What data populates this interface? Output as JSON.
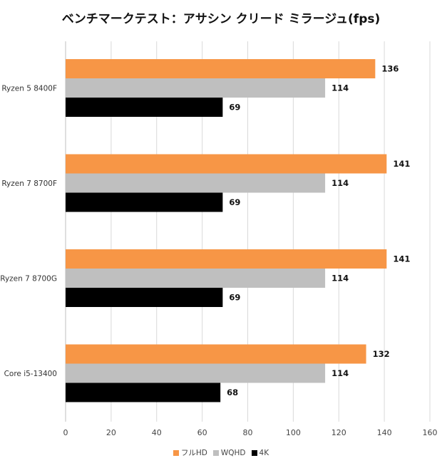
{
  "chart_data": {
    "type": "bar",
    "orientation": "horizontal",
    "title": "ベンチマークテスト：アサシン クリード ミラージュ(fps)",
    "categories": [
      "Ryzen 5 8400F",
      "Ryzen 7 8700F",
      "Ryzen 7 8700G",
      "Core i5-13400"
    ],
    "series": [
      {
        "name": "フルHD",
        "color": "#f79646",
        "values": [
          136,
          141,
          141,
          132
        ]
      },
      {
        "name": "WQHD",
        "color": "#bfbfbf",
        "values": [
          114,
          114,
          114,
          114
        ]
      },
      {
        "name": "4K",
        "color": "#000000",
        "values": [
          69,
          69,
          69,
          68
        ]
      }
    ],
    "xlim": [
      0,
      160
    ],
    "xticks": [
      0,
      20,
      40,
      60,
      80,
      100,
      120,
      140,
      160
    ],
    "grid": true,
    "legend_position": "bottom"
  }
}
